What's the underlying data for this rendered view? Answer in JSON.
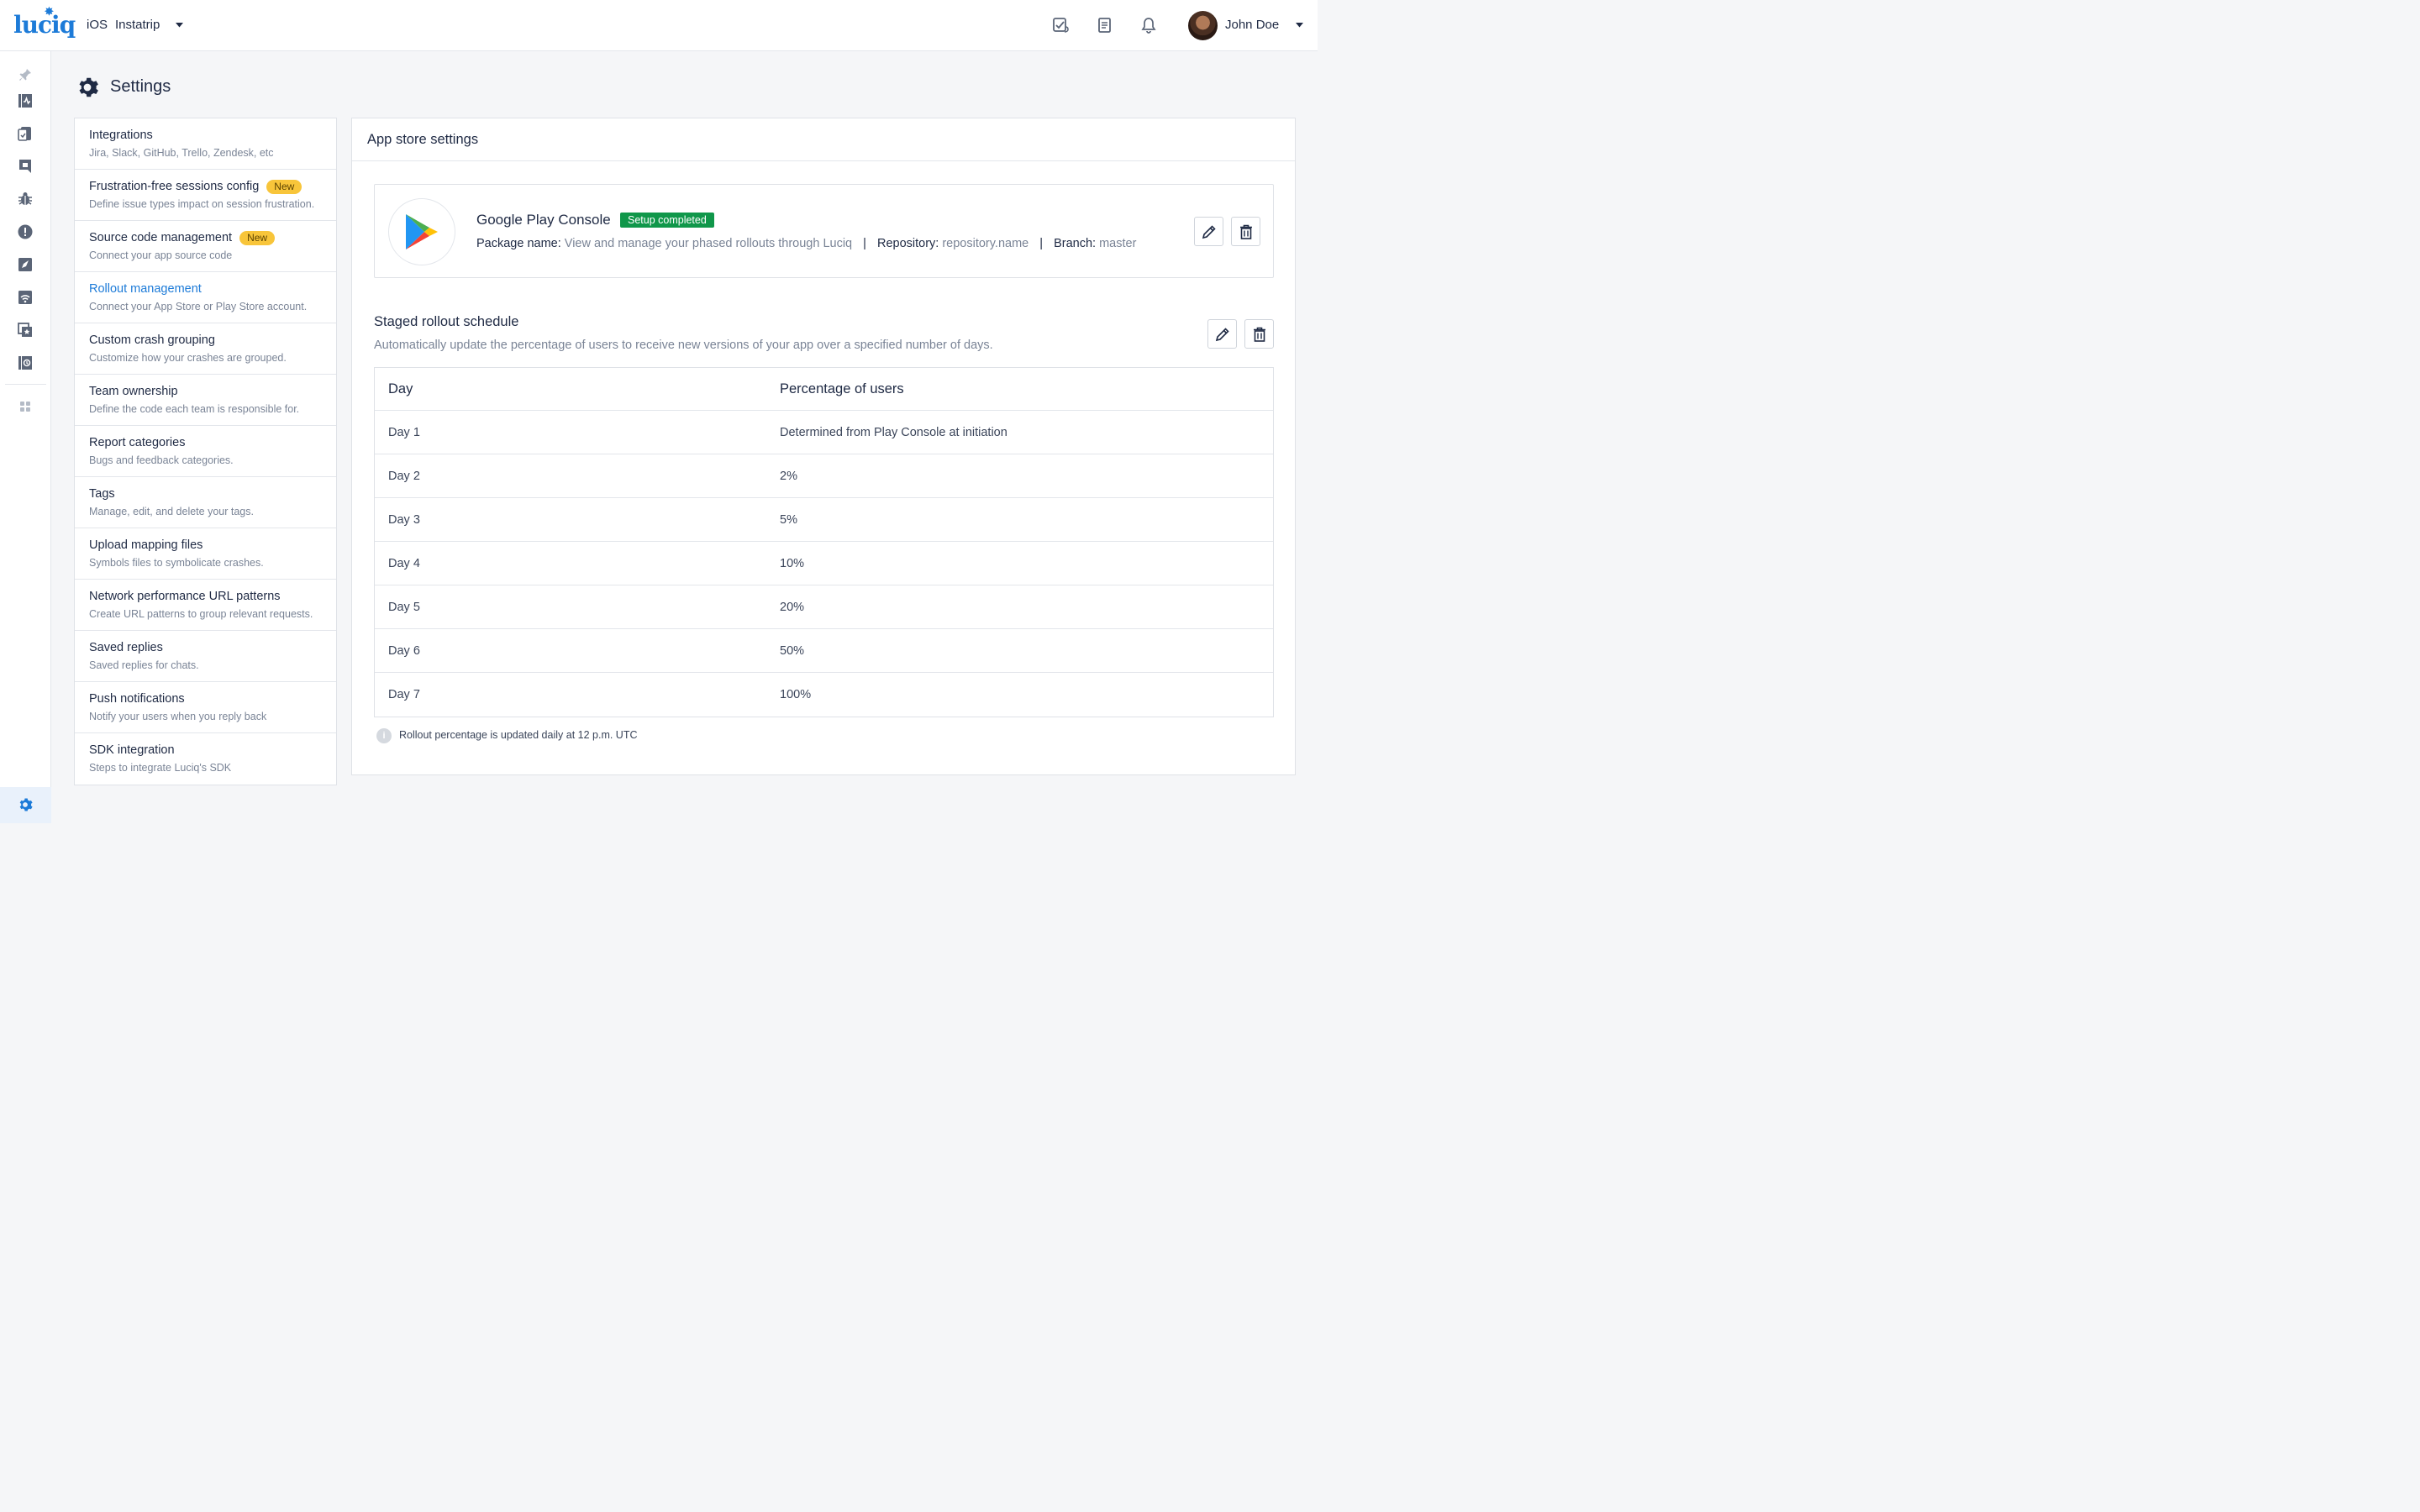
{
  "header": {
    "logo_text": "luciq",
    "platform": "iOS",
    "app_name": "Instatrip",
    "user_name": "John Doe",
    "icons": [
      "tasks-icon",
      "document-icon",
      "bell-icon"
    ]
  },
  "rail": {
    "icons": [
      "pin-icon",
      "apm-icon",
      "sessions-icon",
      "feedback-icon",
      "bugs-icon",
      "crashes-icon",
      "releases-icon",
      "network-icon",
      "app-ratings-icon",
      "rollout-icon",
      "apps-grid-icon",
      "settings-icon"
    ]
  },
  "page": {
    "title": "Settings"
  },
  "menu": {
    "items": [
      {
        "title": "Integrations",
        "desc": "Jira, Slack, GitHub, Trello, Zendesk, etc"
      },
      {
        "title": "Frustration-free sessions config",
        "desc": "Define issue types impact on session frustration.",
        "badge": "New"
      },
      {
        "title": "Source code management",
        "desc": "Connect your app source code",
        "badge": "New"
      },
      {
        "title": "Rollout management",
        "desc": "Connect your App Store or Play Store account."
      },
      {
        "title": "Custom crash grouping",
        "desc": "Customize how your crashes are grouped."
      },
      {
        "title": "Team ownership",
        "desc": "Define the code each team is responsible for."
      },
      {
        "title": "Report categories",
        "desc": "Bugs and feedback categories."
      },
      {
        "title": "Tags",
        "desc": "Manage, edit, and delete your tags."
      },
      {
        "title": "Upload mapping files",
        "desc": "Symbols files to symbolicate crashes."
      },
      {
        "title": "Network performance URL patterns",
        "desc": "Create URL patterns to group relevant requests."
      },
      {
        "title": "Saved replies",
        "desc": "Saved replies for chats."
      },
      {
        "title": "Push notifications",
        "desc": "Notify your users when you reply back"
      },
      {
        "title": "SDK integration",
        "desc": "Steps to integrate Luciq's SDK"
      }
    ]
  },
  "panel": {
    "title": "App store settings",
    "integration": {
      "name": "Google Play Console",
      "status": "Setup completed",
      "package_label": "Package name:",
      "package_value": "View and manage your phased rollouts through Luciq",
      "repo_label": "Repository:",
      "repo_value": "repository.name",
      "branch_label": "Branch:",
      "branch_value": "master",
      "separator": "|"
    },
    "schedule": {
      "title": "Staged rollout schedule",
      "desc": "Automatically update the percentage of users to receive new versions of your app over a specified number of days.",
      "col_day": "Day",
      "col_pct": "Percentage of users",
      "rows": [
        {
          "day": "Day 1",
          "pct": "Determined from Play Console at initiation"
        },
        {
          "day": "Day 2",
          "pct": "2%"
        },
        {
          "day": "Day 3",
          "pct": "5%"
        },
        {
          "day": "Day 4",
          "pct": "10%"
        },
        {
          "day": "Day 5",
          "pct": "20%"
        },
        {
          "day": "Day 6",
          "pct": "50%"
        },
        {
          "day": "Day 7",
          "pct": "100%"
        }
      ]
    },
    "note": "Rollout percentage is updated daily at 12 p.m. UTC",
    "note_icon": "i"
  },
  "colors": {
    "accent": "#1d7bd8",
    "badge_new": "#f8c53a",
    "badge_ok": "#10974a"
  }
}
